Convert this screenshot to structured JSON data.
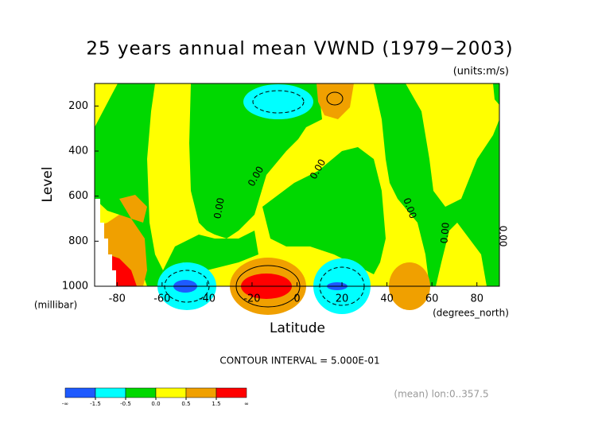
{
  "chart_data": {
    "type": "contour",
    "title": "25 years annual mean VWND  (1979−2003)",
    "units_label": "(units:m/s)",
    "x_label": "Latitude",
    "x_units_label": "(degrees_north)",
    "y_label": "Level",
    "y_units_label": "(millibar)",
    "xlim": [
      -90,
      90
    ],
    "xticks": [
      -80,
      -60,
      -40,
      -20,
      0,
      20,
      40,
      60,
      80
    ],
    "ylim": [
      1000,
      100
    ],
    "yticks": [
      200,
      400,
      600,
      800,
      1000
    ],
    "contour_labels": [
      "0.00",
      "0.00",
      "0.00",
      "0.00",
      "0.00",
      "0.00"
    ],
    "contour_interval_label": "CONTOUR INTERVAL = 5.000E-01",
    "colorbar": {
      "colors": [
        "#1e5aff",
        "#00ffff",
        "#00d800",
        "#ffff00",
        "#f0a000",
        "#ff0000"
      ],
      "ticks": [
        -1.5,
        -0.5,
        {
          "value": 0,
          "label": "0.0"
        },
        0.5,
        1.5
      ],
      "end_labels": [
        "-∞",
        "∞"
      ]
    },
    "footer": "(mean) lon:0..357.5"
  }
}
